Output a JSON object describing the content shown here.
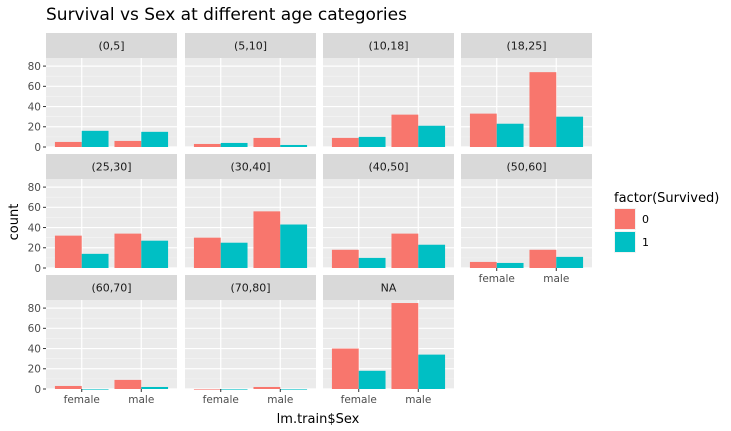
{
  "chart_data": {
    "type": "bar",
    "title": "Survival vs Sex at different age categories",
    "xlabel": "lm.train$Sex",
    "ylabel": "count",
    "categories": [
      "female",
      "male"
    ],
    "ylim": [
      0,
      88
    ],
    "yticks": [
      0,
      20,
      40,
      60,
      80
    ],
    "grid": true,
    "legend": {
      "title": "factor(Survived)",
      "placement": "right",
      "items": [
        {
          "label": "0",
          "color": "#F8766D"
        },
        {
          "label": "1",
          "color": "#00BFC4"
        }
      ]
    },
    "facets": [
      {
        "label": "(0,5]",
        "series": [
          {
            "name": "0",
            "values": [
              5,
              6
            ]
          },
          {
            "name": "1",
            "values": [
              16,
              15
            ]
          }
        ]
      },
      {
        "label": "(5,10]",
        "series": [
          {
            "name": "0",
            "values": [
              3,
              9
            ]
          },
          {
            "name": "1",
            "values": [
              4,
              2
            ]
          }
        ]
      },
      {
        "label": "(10,18]",
        "series": [
          {
            "name": "0",
            "values": [
              9,
              32
            ]
          },
          {
            "name": "1",
            "values": [
              10,
              21
            ]
          }
        ]
      },
      {
        "label": "(18,25]",
        "series": [
          {
            "name": "0",
            "values": [
              33,
              74
            ]
          },
          {
            "name": "1",
            "values": [
              23,
              30
            ]
          }
        ]
      },
      {
        "label": "(25,30]",
        "series": [
          {
            "name": "0",
            "values": [
              32,
              34
            ]
          },
          {
            "name": "1",
            "values": [
              14,
              27
            ]
          }
        ]
      },
      {
        "label": "(30,40]",
        "series": [
          {
            "name": "0",
            "values": [
              30,
              56
            ]
          },
          {
            "name": "1",
            "values": [
              25,
              43
            ]
          }
        ]
      },
      {
        "label": "(40,50]",
        "series": [
          {
            "name": "0",
            "values": [
              18,
              34
            ]
          },
          {
            "name": "1",
            "values": [
              10,
              23
            ]
          }
        ]
      },
      {
        "label": "(50,60]",
        "series": [
          {
            "name": "0",
            "values": [
              6,
              18
            ]
          },
          {
            "name": "1",
            "values": [
              5,
              11
            ]
          }
        ]
      },
      {
        "label": "(60,70]",
        "series": [
          {
            "name": "0",
            "values": [
              3,
              9
            ]
          },
          {
            "name": "1",
            "values": [
              0,
              2
            ]
          }
        ]
      },
      {
        "label": "(70,80]",
        "series": [
          {
            "name": "0",
            "values": [
              0,
              2
            ]
          },
          {
            "name": "1",
            "values": [
              0,
              0
            ]
          }
        ]
      },
      {
        "label": "NA",
        "series": [
          {
            "name": "0",
            "values": [
              40,
              85
            ]
          },
          {
            "name": "1",
            "values": [
              18,
              34
            ]
          }
        ]
      }
    ]
  }
}
